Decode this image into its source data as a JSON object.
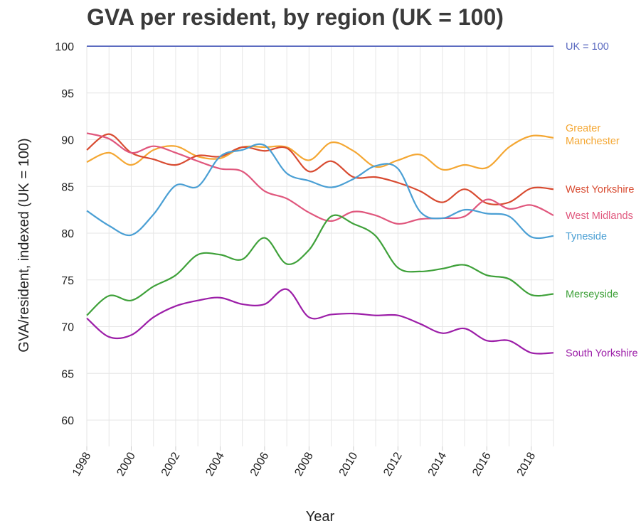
{
  "chart_data": {
    "type": "line",
    "title": "GVA per resident, by region (UK = 100)",
    "xlabel": "Year",
    "ylabel": "GVA/resident, indexed (UK = 100)",
    "xlim": [
      1998,
      2019
    ],
    "ylim": [
      57,
      100
    ],
    "x_ticks": [
      1998,
      2000,
      2002,
      2004,
      2006,
      2008,
      2010,
      2012,
      2014,
      2016,
      2018
    ],
    "y_ticks": [
      60,
      65,
      70,
      75,
      80,
      85,
      90,
      95,
      100
    ],
    "x": [
      1998,
      1999,
      2000,
      2001,
      2002,
      2003,
      2004,
      2005,
      2006,
      2007,
      2008,
      2009,
      2010,
      2011,
      2012,
      2013,
      2014,
      2015,
      2016,
      2017,
      2018,
      2019
    ],
    "reference": {
      "name": "UK = 100",
      "value": 100,
      "color": "#5c6bc0"
    },
    "series": [
      {
        "name": "Greater Manchester",
        "label_lines": [
          "Greater",
          "Manchester"
        ],
        "color": "#f4a733",
        "values": [
          87.6,
          88.6,
          87.3,
          88.9,
          89.3,
          88.2,
          88.0,
          89.2,
          89.2,
          89.2,
          87.8,
          89.7,
          88.8,
          87.1,
          87.8,
          88.4,
          86.8,
          87.3,
          87.0,
          89.2,
          90.4,
          90.2
        ]
      },
      {
        "name": "West Yorkshire",
        "label_lines": [
          "West Yorkshire"
        ],
        "color": "#d84b31",
        "values": [
          88.9,
          90.6,
          88.6,
          87.9,
          87.3,
          88.3,
          88.2,
          89.2,
          88.8,
          89.1,
          86.6,
          87.7,
          86.0,
          86.0,
          85.4,
          84.5,
          83.3,
          84.7,
          83.2,
          83.3,
          84.8,
          84.7
        ]
      },
      {
        "name": "West Midlands",
        "label_lines": [
          "West Midlands"
        ],
        "color": "#e0577d",
        "values": [
          90.7,
          90.1,
          88.6,
          89.3,
          88.6,
          87.7,
          86.9,
          86.6,
          84.5,
          83.7,
          82.2,
          81.3,
          82.3,
          81.9,
          81.0,
          81.5,
          81.6,
          81.8,
          83.6,
          82.6,
          83.0,
          81.9
        ]
      },
      {
        "name": "Tyneside",
        "label_lines": [
          "Tyneside"
        ],
        "color": "#4a9fd4",
        "values": [
          82.4,
          80.8,
          79.8,
          82.0,
          85.1,
          85.0,
          88.2,
          88.9,
          89.4,
          86.4,
          85.6,
          84.9,
          85.8,
          87.2,
          86.9,
          82.3,
          81.6,
          82.5,
          82.1,
          81.8,
          79.6,
          79.7
        ]
      },
      {
        "name": "Merseyside",
        "label_lines": [
          "Merseyside"
        ],
        "color": "#3fa13a",
        "values": [
          71.2,
          73.3,
          72.8,
          74.3,
          75.5,
          77.7,
          77.7,
          77.2,
          79.5,
          76.7,
          78.2,
          81.8,
          81.0,
          79.7,
          76.3,
          75.9,
          76.2,
          76.6,
          75.5,
          75.1,
          73.4,
          73.5
        ]
      },
      {
        "name": "South Yorkshire",
        "label_lines": [
          "South Yorkshire"
        ],
        "color": "#9c1ea8",
        "values": [
          70.9,
          68.9,
          69.1,
          71.0,
          72.2,
          72.8,
          73.1,
          72.4,
          72.4,
          74.0,
          71.0,
          71.3,
          71.4,
          71.2,
          71.2,
          70.3,
          69.3,
          69.8,
          68.5,
          68.5,
          67.2,
          67.2
        ]
      }
    ]
  }
}
